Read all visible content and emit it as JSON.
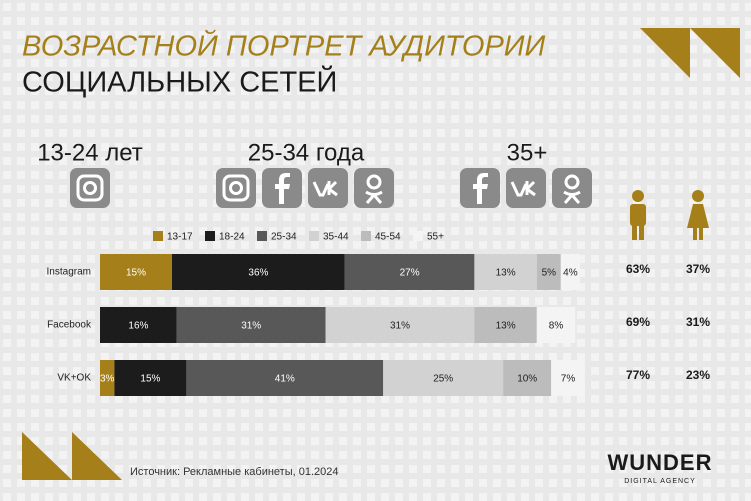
{
  "header": {
    "title": "ВОЗРАСТНОЙ ПОРТРЕТ АУДИТОРИИ",
    "subtitle": "СОЦИАЛЬНЫХ СЕТЕЙ"
  },
  "groups": [
    "13-24 лет",
    "25-34 года",
    "35+"
  ],
  "chart_data": {
    "type": "bar",
    "orientation": "horizontal",
    "stacked": true,
    "categories": [
      "Instagram",
      "Facebook",
      "VK+OK"
    ],
    "series": [
      {
        "name": "13-17",
        "color": "#a5801a",
        "values": [
          15,
          null,
          3
        ],
        "value_labels": [
          "15%",
          null,
          "3%"
        ]
      },
      {
        "name": "18-24",
        "color": "#1c1c1c",
        "values": [
          36,
          16,
          15
        ],
        "value_labels": [
          "36%",
          "16%",
          "15%"
        ]
      },
      {
        "name": "25-34",
        "color": "#585858",
        "values": [
          27,
          31,
          41
        ],
        "value_labels": [
          "27%",
          "31%",
          "41%"
        ]
      },
      {
        "name": "35-44",
        "color": "#d2d2d2",
        "values": [
          13,
          31,
          25
        ],
        "value_labels": [
          "13%",
          "31%",
          "25%"
        ]
      },
      {
        "name": "45-54",
        "color": "#bcbcbc",
        "values": [
          5,
          13,
          10
        ],
        "value_labels": [
          "5%",
          "13%",
          "10%"
        ]
      },
      {
        "name": "55+",
        "color": "#f4f4f4",
        "values": [
          4,
          8,
          7
        ],
        "value_labels": [
          "4%",
          "8%",
          "7%"
        ]
      }
    ],
    "legend": "top"
  },
  "gender": {
    "male": [
      "63%",
      "69%",
      "77%"
    ],
    "female": [
      "37%",
      "31%",
      "23%"
    ]
  },
  "footer": {
    "source": "Источник: Рекламные кабинеты, 01.2024",
    "logo": "WUNDER",
    "logo_sub": "DIGITAL AGENCY"
  }
}
